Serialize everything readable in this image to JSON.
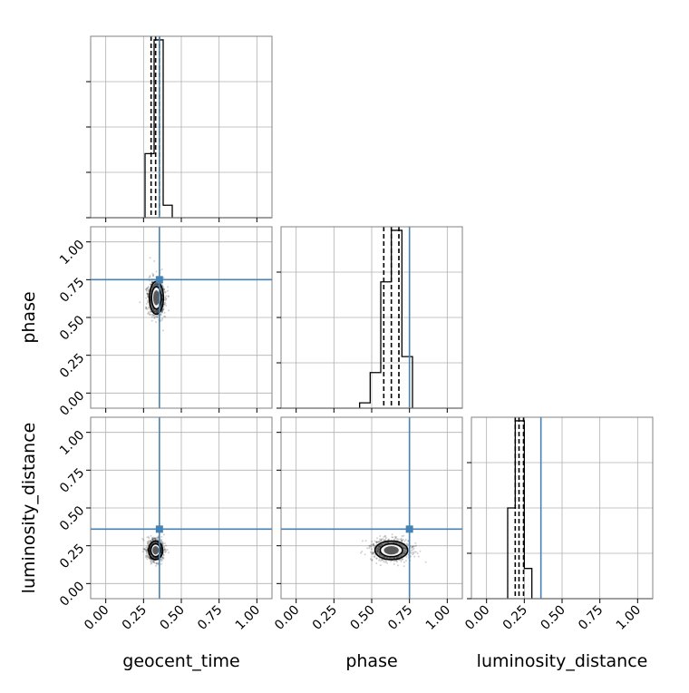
{
  "chart_data": {
    "type": "corner",
    "parameters": [
      "geocent_time",
      "phase",
      "luminosity_distance"
    ],
    "axis_labels": {
      "x": [
        "geocent_time",
        "phase",
        "luminosity_distance"
      ],
      "y": [
        "phase",
        "luminosity_distance"
      ]
    },
    "range": [
      -0.1,
      1.1
    ],
    "ticks": [
      0.0,
      0.25,
      0.5,
      0.75,
      1.0
    ],
    "tick_labels": [
      "0.00",
      "0.25",
      "0.50",
      "0.75",
      "1.00"
    ],
    "truths": [
      0.355,
      0.75,
      0.36
    ],
    "truth_color": "#4682b4",
    "grid": true,
    "quantiles": [
      0.16,
      0.5,
      0.84
    ],
    "marginals": [
      {
        "param": "geocent_time",
        "bin_edges": [
          0.26,
          0.32,
          0.38,
          0.44
        ],
        "counts": [
          0.36,
          1.0,
          0.07
        ],
        "quantile_values": [
          0.3,
          0.33,
          0.355
        ]
      },
      {
        "param": "phase",
        "bin_edges": [
          0.42,
          0.49,
          0.56,
          0.63,
          0.7,
          0.77
        ],
        "counts": [
          0.03,
          0.2,
          0.71,
          1.0,
          0.29
        ],
        "quantile_values": [
          0.58,
          0.63,
          0.68
        ]
      },
      {
        "param": "luminosity_distance",
        "bin_edges": [
          0.14,
          0.19,
          0.25,
          0.3
        ],
        "counts": [
          0.51,
          1.0,
          0.17
        ],
        "quantile_values": [
          0.19,
          0.215,
          0.245
        ]
      }
    ],
    "joints": [
      {
        "x_param": "geocent_time",
        "y_param": "phase",
        "center": [
          0.335,
          0.63
        ],
        "spread": [
          0.03,
          0.07
        ]
      },
      {
        "x_param": "geocent_time",
        "y_param": "luminosity_distance",
        "center": [
          0.33,
          0.22
        ],
        "spread": [
          0.03,
          0.04
        ]
      },
      {
        "x_param": "phase",
        "y_param": "luminosity_distance",
        "center": [
          0.63,
          0.22
        ],
        "spread": [
          0.07,
          0.04
        ]
      }
    ]
  }
}
